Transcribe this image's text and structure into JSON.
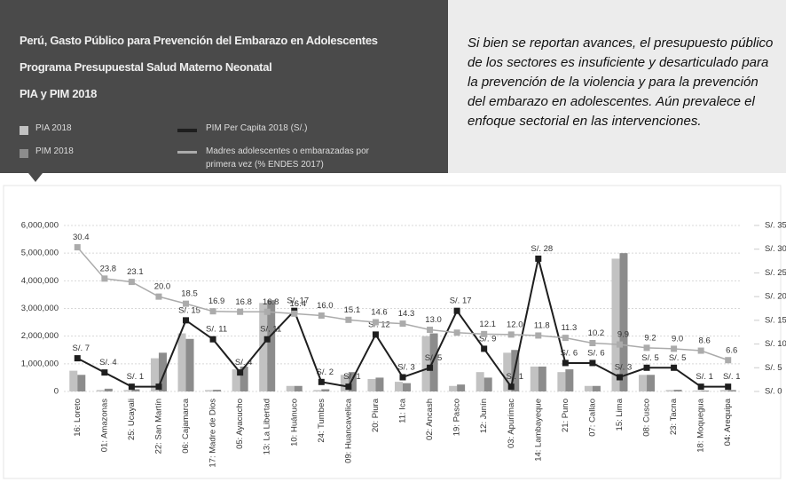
{
  "chart_data": {
    "type": "bar",
    "title": [
      "Perú, Gasto Público para Prevención del Embarazo en Adolescentes",
      "Programa Presupuestal Salud Materno Neonatal",
      "PIA y PIM 2018"
    ],
    "annotation": "Si bien se reportan avances, el presupuesto público de los sectores es insuficiente y desarticulado para la prevención de la violencia y para la prevención del embarazo en adolescentes. Aún prevalece el enfoque sectorial en las intervenciones.",
    "categories": [
      "16: Loreto",
      "01: Amazonas",
      "25: Ucayali",
      "22: San Martín",
      "06: Cajamarca",
      "17: Madre de Dios",
      "05: Ayacucho",
      "13: La Libertad",
      "10: Huánuco",
      "24: Tumbes",
      "09: Huancavelica",
      "20: Piura",
      "11: Ica",
      "02: Ancash",
      "19: Pasco",
      "12: Junín",
      "03: Apurímac",
      "14: Lambayeque",
      "21: Puno",
      "07: Callao",
      "15: Lima",
      "08: Cusco",
      "23: Tacna",
      "18: Moquegua",
      "04: Arequipa"
    ],
    "series": [
      {
        "name": "PIA 2018",
        "type": "bar",
        "color": "#c2c2c2",
        "values": [
          750000,
          50000,
          50000,
          1200000,
          2100000,
          50000,
          800000,
          3200000,
          200000,
          50000,
          600000,
          450000,
          350000,
          2000000,
          200000,
          700000,
          1400000,
          900000,
          700000,
          200000,
          4800000,
          600000,
          50000,
          30000,
          50000
        ]
      },
      {
        "name": "PIM 2018",
        "type": "bar",
        "color": "#8c8c8c",
        "values": [
          600000,
          100000,
          80000,
          1400000,
          1900000,
          60000,
          900000,
          3300000,
          200000,
          80000,
          700000,
          500000,
          300000,
          2100000,
          250000,
          500000,
          1500000,
          900000,
          800000,
          200000,
          5000000,
          600000,
          60000,
          30000,
          50000
        ]
      },
      {
        "name": "PIM Per Capita 2018 (S/.)",
        "type": "line",
        "axis": "y2",
        "color": "#1e1e1e",
        "values": [
          7,
          4,
          1,
          1,
          15,
          11,
          4,
          11,
          17,
          2,
          1,
          12,
          3,
          5,
          17,
          9,
          1,
          28,
          6,
          6,
          3,
          5,
          5,
          1,
          1
        ],
        "value_labels": [
          "S/. 7",
          "S/. 4",
          "S/. 1",
          null,
          "S/. 15",
          "S/. 11",
          "S/. 4",
          "S/. 11",
          "S/. 17",
          "S/. 2",
          "S/. 1",
          "S/. 12",
          "S/. 3",
          "S/. 5",
          "S/. 17",
          "S/. 9",
          "S/. 1",
          "S/. 28",
          "S/. 6",
          "S/. 6",
          "S/. 3",
          "S/. 5",
          "S/. 5",
          "S/. 1",
          "S/. 1"
        ]
      },
      {
        "name": "Madres adolescentes o embarazadas por primera vez (% ENDES 2017)",
        "type": "line",
        "axis": "y2",
        "color": "#ababab",
        "values": [
          30.4,
          23.8,
          23.1,
          20.0,
          18.5,
          16.9,
          16.8,
          16.8,
          16.4,
          16.0,
          15.1,
          14.6,
          14.3,
          13.0,
          12.4,
          12.1,
          12.0,
          11.8,
          11.3,
          10.2,
          9.9,
          9.2,
          9.0,
          8.6,
          6.6
        ],
        "value_labels": [
          "30.4",
          "23.8",
          "23.1",
          "20.0",
          "18.5",
          "16.9",
          "16.8",
          "16.8",
          "16.4",
          "16.0",
          "15.1",
          "14.6",
          "14.3",
          "13.0",
          null,
          "12.1",
          "12.0",
          "11.8",
          "11.3",
          "10.2",
          "9.9",
          "9.2",
          "9.0",
          "8.6",
          "6.6"
        ]
      }
    ],
    "ylim": [
      0,
      6000000
    ],
    "yticks": [
      0,
      {
        "value": 1000000,
        "label": "1,000,000"
      },
      {
        "value": 2000000,
        "label": "2,000,000"
      },
      {
        "value": 3000000,
        "label": "3,000,000"
      },
      {
        "value": 4000000,
        "label": "4,000,000"
      },
      {
        "value": 5000000,
        "label": "5,000,000"
      },
      {
        "value": 6000000,
        "label": "6,000,000"
      }
    ],
    "y2lim": [
      0,
      35
    ],
    "y2ticks": [
      {
        "value": 0,
        "label": "S/. 0"
      },
      {
        "value": 5,
        "label": "S/. 5"
      },
      {
        "value": 10,
        "label": "S/. 10"
      },
      {
        "value": 15,
        "label": "S/. 15"
      },
      {
        "value": 20,
        "label": "S/. 20"
      },
      {
        "value": 25,
        "label": "S/. 25"
      },
      {
        "value": 30,
        "label": "S/. 30"
      },
      {
        "value": 35,
        "label": "S/. 35"
      }
    ],
    "grid": true
  }
}
